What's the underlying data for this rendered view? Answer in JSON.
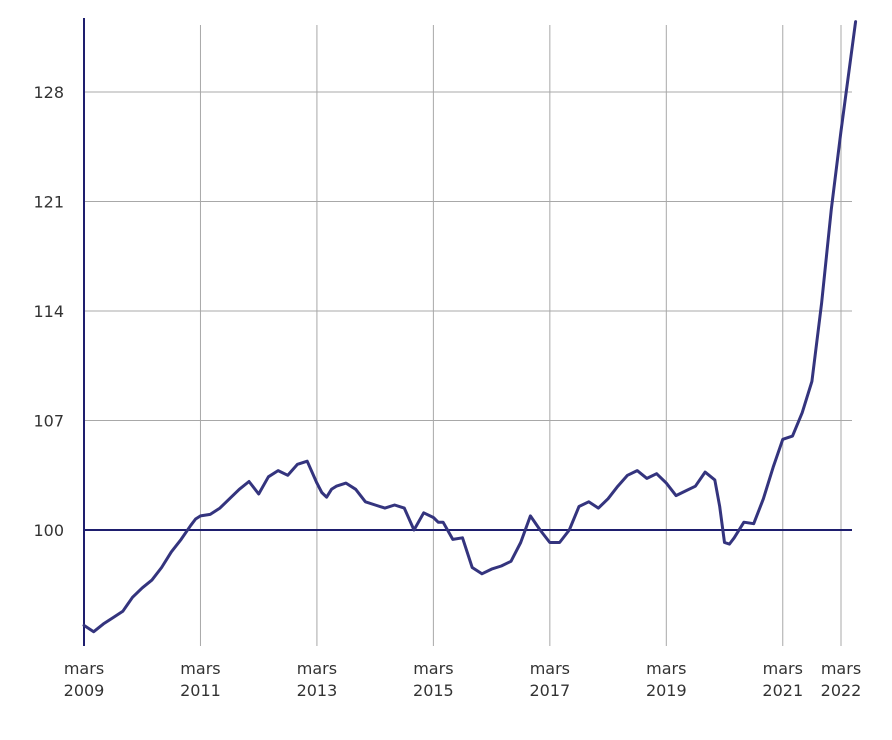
{
  "chart_data": {
    "type": "line",
    "title": "",
    "xlabel": "",
    "ylabel": "",
    "ylim": [
      93,
      133
    ],
    "y_ticks": [
      100,
      107,
      114,
      121,
      128
    ],
    "x_range": [
      "2009-03",
      "2022-06"
    ],
    "x_ticks": [
      {
        "date": "2009-03",
        "line1": "mars",
        "line2": "2009"
      },
      {
        "date": "2011-03",
        "line1": "mars",
        "line2": "2011"
      },
      {
        "date": "2013-03",
        "line1": "mars",
        "line2": "2013"
      },
      {
        "date": "2015-03",
        "line1": "mars",
        "line2": "2015"
      },
      {
        "date": "2017-03",
        "line1": "mars",
        "line2": "2017"
      },
      {
        "date": "2019-03",
        "line1": "mars",
        "line2": "2019"
      },
      {
        "date": "2021-03",
        "line1": "mars",
        "line2": "2021"
      },
      {
        "date": "2022-03",
        "line1": "mars",
        "line2": "2022"
      }
    ],
    "reference_line": 100,
    "grid": true,
    "legend": "none",
    "colors": {
      "line": "#34347e",
      "reference": "#1e1e6e",
      "grid": "#a8a8a8"
    },
    "series": [
      {
        "x": [
          "2009-03",
          "2009-05",
          "2009-07",
          "2009-09",
          "2009-11",
          "2010-01",
          "2010-03",
          "2010-05",
          "2010-07",
          "2010-09",
          "2010-11",
          "2011-01",
          "2011-02",
          "2011-03",
          "2011-05",
          "2011-07",
          "2011-09",
          "2011-11",
          "2012-01",
          "2012-03",
          "2012-05",
          "2012-07",
          "2012-09",
          "2012-11",
          "2013-01",
          "2013-03",
          "2013-04",
          "2013-05",
          "2013-06",
          "2013-07",
          "2013-09",
          "2013-11",
          "2014-01",
          "2014-03",
          "2014-05",
          "2014-07",
          "2014-09",
          "2014-11",
          "2015-01",
          "2015-03",
          "2015-04",
          "2015-05",
          "2015-07",
          "2015-09",
          "2015-11",
          "2016-01",
          "2016-03",
          "2016-05",
          "2016-07",
          "2016-09",
          "2016-11",
          "2017-01",
          "2017-03",
          "2017-05",
          "2017-07",
          "2017-09",
          "2017-11",
          "2018-01",
          "2018-03",
          "2018-05",
          "2018-07",
          "2018-09",
          "2018-11",
          "2019-01",
          "2019-03",
          "2019-05",
          "2019-07",
          "2019-09",
          "2019-11",
          "2020-01",
          "2020-02",
          "2020-03",
          "2020-04",
          "2020-05",
          "2020-07",
          "2020-09",
          "2020-11",
          "2021-01",
          "2021-03",
          "2021-05",
          "2021-07",
          "2021-09",
          "2021-11",
          "2022-01",
          "2022-03",
          "2022-06"
        ],
        "y": [
          93.9,
          93.5,
          94.0,
          94.4,
          94.8,
          95.7,
          96.3,
          96.8,
          97.6,
          98.6,
          99.4,
          100.3,
          100.7,
          100.9,
          101.0,
          101.4,
          102.0,
          102.6,
          103.1,
          102.3,
          103.4,
          103.8,
          103.5,
          104.2,
          104.4,
          103.0,
          102.4,
          102.1,
          102.6,
          102.8,
          103.0,
          102.6,
          101.8,
          101.6,
          101.4,
          101.6,
          101.4,
          100.0,
          101.1,
          100.8,
          100.5,
          100.5,
          99.4,
          99.5,
          97.6,
          97.2,
          97.5,
          97.7,
          98.0,
          99.2,
          100.9,
          100.0,
          99.2,
          99.2,
          100.0,
          101.5,
          101.8,
          101.4,
          102.0,
          102.8,
          103.5,
          103.8,
          103.3,
          103.6,
          103.0,
          102.2,
          102.5,
          102.8,
          103.7,
          103.2,
          101.5,
          99.2,
          99.1,
          99.5,
          100.5,
          100.4,
          102.0,
          104.0,
          105.8,
          106.0,
          107.5,
          109.5,
          114.5,
          120.5,
          125.5,
          132.5
        ]
      }
    ]
  }
}
